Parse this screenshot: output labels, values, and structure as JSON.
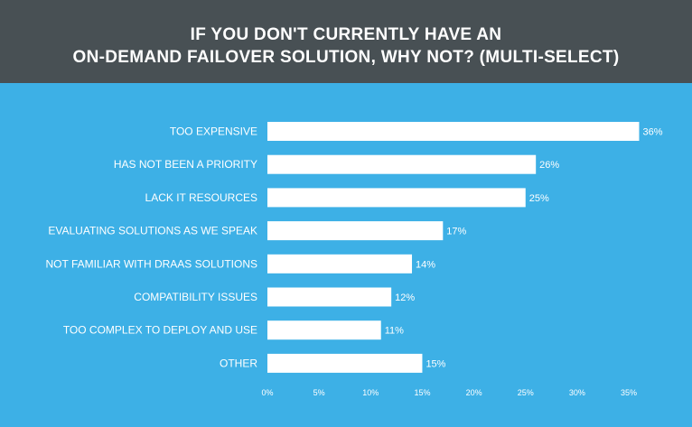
{
  "header": {
    "title_line_1": "IF YOU DON'T CURRENTLY HAVE AN",
    "title_line_2": "ON-DEMAND FAILOVER SOLUTION, WHY NOT? (MULTI-SELECT)"
  },
  "colors": {
    "background": "#3db0e6",
    "header_background": "#485054",
    "bar": "#ffffff",
    "text": "#ffffff"
  },
  "chart_data": {
    "type": "bar",
    "orientation": "horizontal",
    "categories": [
      "TOO EXPENSIVE",
      "HAS NOT BEEN A PRIORITY",
      "LACK IT RESOURCES",
      "EVALUATING SOLUTIONS AS WE SPEAK",
      "NOT FAMILIAR WITH DRAAS SOLUTIONS",
      "COMPATIBILITY ISSUES",
      "TOO COMPLEX TO DEPLOY AND USE",
      "OTHER"
    ],
    "values": [
      36,
      26,
      25,
      17,
      14,
      12,
      11,
      15
    ],
    "value_labels": [
      "36%",
      "26%",
      "25%",
      "17%",
      "14%",
      "12%",
      "11%",
      "15%"
    ],
    "xlim": [
      0,
      35
    ],
    "x_ticks": [
      "0%",
      "5%",
      "10%",
      "15%",
      "20%",
      "25%",
      "30%",
      "35%"
    ],
    "grid": false,
    "legend": "none"
  }
}
